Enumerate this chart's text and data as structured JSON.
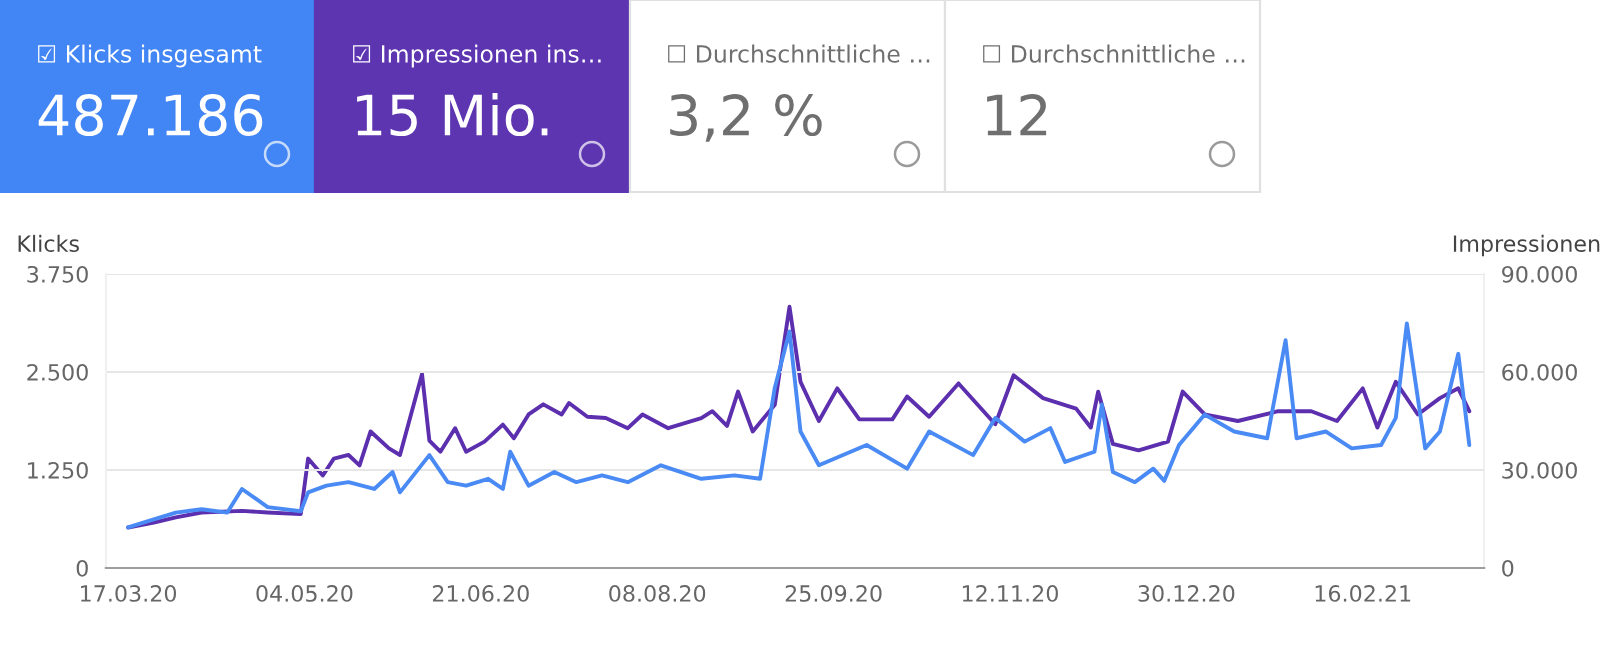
{
  "chart_data": [
    {
      "type": "other",
      "annotations": [
        "☑ Klicks insgesamt",
        "487.186",
        "☑ Impressionen ins…",
        "15 Mio.",
        "☐ Durchschnittliche …",
        "3,2 %",
        "☐ Durchschnittliche …",
        "12"
      ],
      "colors": [
        "#4285f4",
        "#5e35b1",
        "#ffffff",
        "#ffffff"
      ]
    },
    {
      "type": "line",
      "ylabel": "Klicks",
      "y2label": "Impressionen",
      "grid": "y",
      "xlim": [
        "2020-03-11",
        "2021-03-21"
      ],
      "xticks": [
        {
          "value": "2020-03-17",
          "label": "17.03.20"
        },
        {
          "value": "2020-05-04",
          "label": "04.05.20"
        },
        {
          "value": "2020-06-21",
          "label": "21.06.20"
        },
        {
          "value": "2020-08-08",
          "label": "08.08.20"
        },
        {
          "value": "2020-09-25",
          "label": "25.09.20"
        },
        {
          "value": "2020-11-12",
          "label": "12.11.20"
        },
        {
          "value": "2020-12-30",
          "label": "30.12.20"
        },
        {
          "value": "2021-02-16",
          "label": "16.02.21"
        }
      ],
      "ylim": [
        0,
        3750
      ],
      "yticks": [
        0,
        {
          "value": 1250,
          "label": "1.250"
        },
        {
          "value": 2500,
          "label": "2.500"
        },
        {
          "value": 3750,
          "label": "3.750"
        }
      ],
      "y2lim": [
        0,
        90000
      ],
      "y2ticks": [
        0,
        {
          "value": 30000,
          "label": "30.000"
        },
        {
          "value": 60000,
          "label": "60.000"
        },
        {
          "value": 90000,
          "label": "90.000"
        }
      ],
      "series": [
        {
          "color": "#4a8af4",
          "x": [
            "2020-03-17",
            "2020-03-24",
            "2020-03-30",
            "2020-04-06",
            "2020-04-13",
            "2020-04-17",
            "2020-04-24",
            "2020-05-03",
            "2020-05-05",
            "2020-05-10",
            "2020-05-16",
            "2020-05-23",
            "2020-05-28",
            "2020-05-30",
            "2020-06-07",
            "2020-06-12",
            "2020-06-17",
            "2020-06-23",
            "2020-06-27",
            "2020-06-29",
            "2020-07-04",
            "2020-07-11",
            "2020-07-17",
            "2020-07-24",
            "2020-07-31",
            "2020-08-09",
            "2020-08-20",
            "2020-08-29",
            "2020-09-05",
            "2020-09-09",
            "2020-09-13",
            "2020-09-16",
            "2020-09-21",
            "2020-10-04",
            "2020-10-15",
            "2020-10-21",
            "2020-11-02",
            "2020-11-08",
            "2020-11-16",
            "2020-11-23",
            "2020-11-27",
            "2020-12-05",
            "2020-12-07",
            "2020-12-10",
            "2020-12-16",
            "2020-12-21",
            "2020-12-24",
            "2020-12-28",
            "2021-01-04",
            "2021-01-12",
            "2021-01-21",
            "2021-01-26",
            "2021-01-29",
            "2021-02-06",
            "2021-02-13",
            "2021-02-21",
            "2021-02-25",
            "2021-02-28",
            "2021-03-05",
            "2021-03-09",
            "2021-03-14",
            "2021-03-17"
          ],
          "values": [
            517,
            620,
            707,
            750,
            707,
            1008,
            776,
            724,
            965,
            1050,
            1095,
            1008,
            1224,
            965,
            1440,
            1095,
            1050,
            1138,
            1008,
            1483,
            1050,
            1224,
            1095,
            1181,
            1095,
            1310,
            1138,
            1181,
            1138,
            2300,
            3017,
            1741,
            1310,
            1569,
            1267,
            1741,
            1440,
            1914,
            1612,
            1784,
            1353,
            1483,
            2086,
            1224,
            1095,
            1267,
            1112,
            1569,
            1957,
            1741,
            1655,
            2905,
            1655,
            1741,
            1526,
            1569,
            1914,
            3120,
            1526,
            1741,
            2732,
            1569
          ]
        },
        {
          "color": "#5c2fae",
          "axis": "y2",
          "x": [
            "2020-03-17",
            "2020-03-24",
            "2020-03-30",
            "2020-04-06",
            "2020-04-17",
            "2020-04-24",
            "2020-05-03",
            "2020-05-05",
            "2020-05-09",
            "2020-05-12",
            "2020-05-16",
            "2020-05-19",
            "2020-05-22",
            "2020-05-27",
            "2020-05-30",
            "2020-06-05",
            "2020-06-07",
            "2020-06-10",
            "2020-06-14",
            "2020-06-17",
            "2020-06-22",
            "2020-06-27",
            "2020-06-30",
            "2020-07-04",
            "2020-07-08",
            "2020-07-13",
            "2020-07-15",
            "2020-07-20",
            "2020-07-25",
            "2020-07-31",
            "2020-08-04",
            "2020-08-11",
            "2020-08-20",
            "2020-08-23",
            "2020-08-27",
            "2020-08-30",
            "2020-09-03",
            "2020-09-09",
            "2020-09-13",
            "2020-09-16",
            "2020-09-21",
            "2020-09-26",
            "2020-10-02",
            "2020-10-11",
            "2020-10-15",
            "2020-10-21",
            "2020-10-29",
            "2020-11-08",
            "2020-11-13",
            "2020-11-21",
            "2020-11-30",
            "2020-12-04",
            "2020-12-06",
            "2020-12-10",
            "2020-12-17",
            "2020-12-25",
            "2020-12-29",
            "2021-01-04",
            "2021-01-13",
            "2021-01-24",
            "2021-02-02",
            "2021-02-09",
            "2021-02-16",
            "2021-02-20",
            "2021-02-25",
            "2021-03-03",
            "2021-03-09",
            "2021-03-14",
            "2021-03-17"
          ],
          "values": [
            12400,
            13900,
            15500,
            17000,
            17500,
            17000,
            16500,
            33500,
            28300,
            33500,
            34600,
            31400,
            41800,
            36600,
            34600,
            59400,
            39000,
            35600,
            42800,
            35600,
            38700,
            43900,
            39700,
            47000,
            50100,
            47000,
            50500,
            46300,
            45900,
            42800,
            47000,
            42800,
            45900,
            48000,
            43500,
            54000,
            41800,
            50000,
            80000,
            57000,
            45000,
            55000,
            45500,
            45500,
            52500,
            46300,
            56500,
            44000,
            59000,
            52000,
            48800,
            43000,
            54000,
            38000,
            36000,
            38700,
            54000,
            47000,
            45000,
            48000,
            48000,
            45000,
            55000,
            43000,
            57000,
            47000,
            52000,
            55000,
            48000
          ]
        }
      ]
    }
  ]
}
